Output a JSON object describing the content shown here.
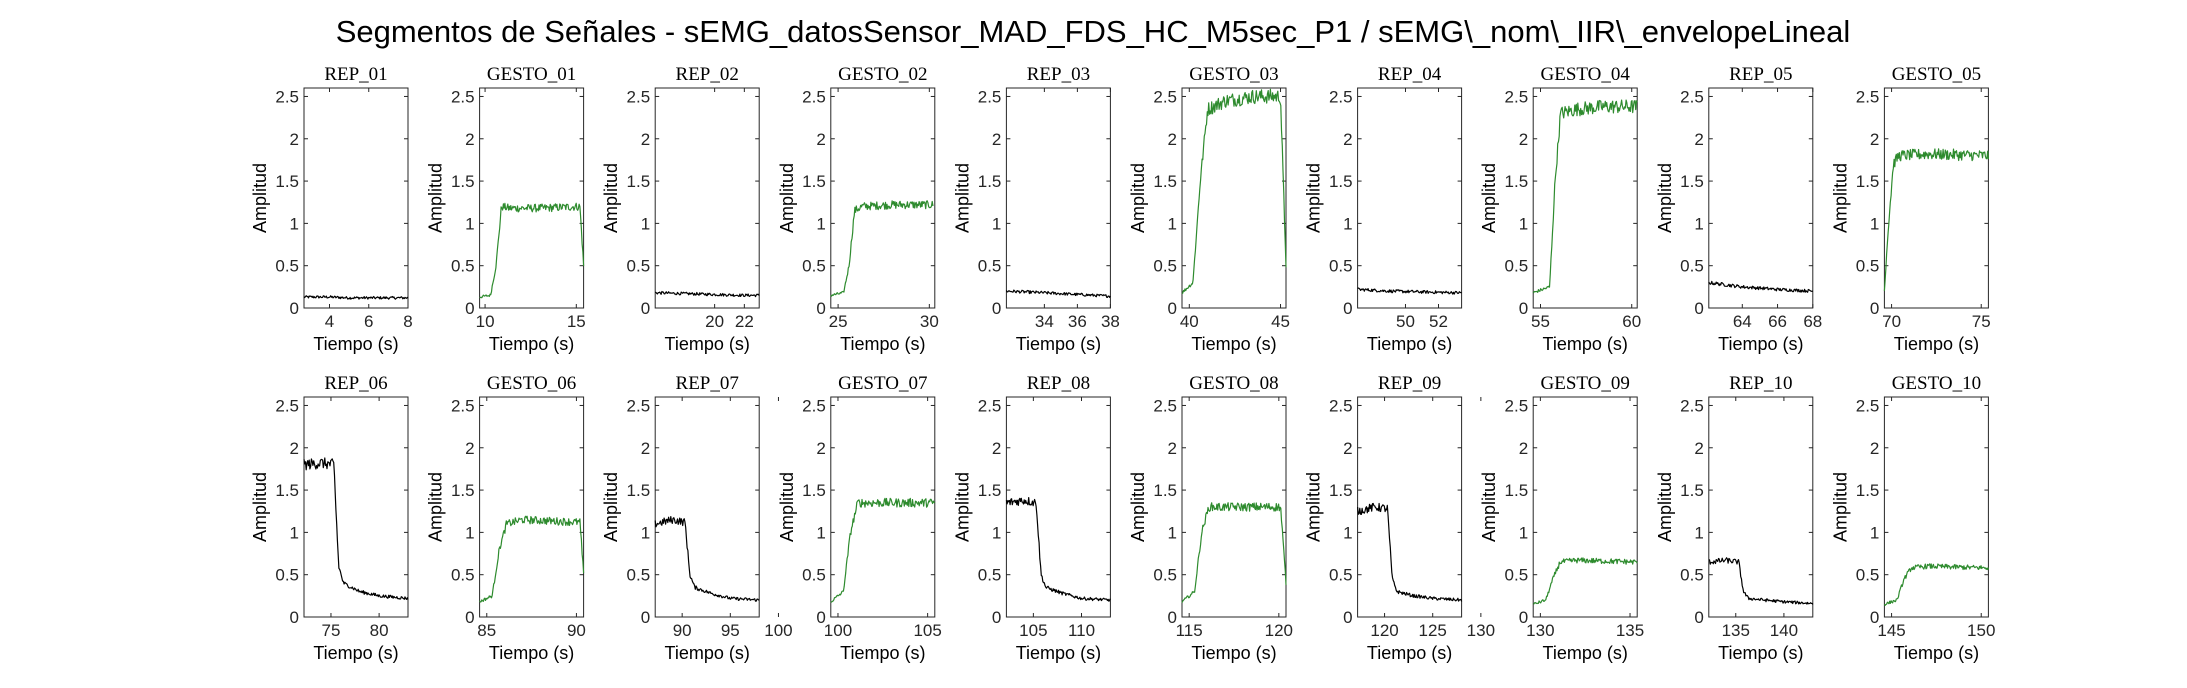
{
  "figure": {
    "suptitle": "Segmentos de Señales - sEMG_datosSensor_MAD_FDS_HC_M5sec_P1 / sEMG\\_nom\\_IIR\\_envelopeLineal"
  },
  "colors": {
    "rep": "#000000",
    "gesture": "#2e8b2e",
    "axis": "#262626"
  },
  "chart_data": [
    {
      "type": "line",
      "title": "REP_01",
      "xlabel": "Tiempo (s)",
      "ylabel": "Amplitud",
      "xlim": [
        2.7,
        8
      ],
      "ylim": [
        0,
        2.6
      ],
      "xticks": [
        4,
        6,
        8
      ],
      "yticks": [
        0,
        0.5,
        1,
        1.5,
        2,
        2.5
      ],
      "color": "#000000",
      "x": [
        2.7,
        4,
        5,
        6,
        7,
        8
      ],
      "y": [
        0.13,
        0.13,
        0.12,
        0.12,
        0.12,
        0.12
      ]
    },
    {
      "type": "line",
      "title": "GESTO_01",
      "xlabel": "Tiempo (s)",
      "ylabel": "Amplitud",
      "xlim": [
        9.7,
        15.4
      ],
      "ylim": [
        0,
        2.6
      ],
      "xticks": [
        10,
        15
      ],
      "yticks": [
        0,
        0.5,
        1,
        1.5,
        2,
        2.5
      ],
      "color": "#2e8b2e",
      "x": [
        9.7,
        10.3,
        10.6,
        10.9,
        11.3,
        13,
        15.2,
        15.4
      ],
      "y": [
        0.13,
        0.15,
        0.5,
        1.2,
        1.18,
        1.18,
        1.2,
        0.5
      ]
    },
    {
      "type": "line",
      "title": "REP_02",
      "xlabel": "Tiempo (s)",
      "ylabel": "Amplitud",
      "xlim": [
        16,
        23
      ],
      "ylim": [
        0,
        2.6
      ],
      "xticks": [
        20,
        22
      ],
      "yticks": [
        0,
        0.5,
        1,
        1.5,
        2,
        2.5
      ],
      "color": "#000000",
      "x": [
        16,
        18,
        20,
        22,
        23
      ],
      "y": [
        0.18,
        0.17,
        0.16,
        0.15,
        0.15
      ]
    },
    {
      "type": "line",
      "title": "GESTO_02",
      "xlabel": "Tiempo (s)",
      "ylabel": "Amplitud",
      "xlim": [
        24.6,
        30.3
      ],
      "ylim": [
        0,
        2.6
      ],
      "xticks": [
        25,
        30
      ],
      "yticks": [
        0,
        0.5,
        1,
        1.5,
        2,
        2.5
      ],
      "color": "#2e8b2e",
      "x": [
        24.6,
        25.3,
        25.6,
        25.9,
        26.3,
        28,
        30.2
      ],
      "y": [
        0.15,
        0.18,
        0.5,
        1.15,
        1.2,
        1.22,
        1.22
      ]
    },
    {
      "type": "line",
      "title": "REP_03",
      "xlabel": "Tiempo (s)",
      "ylabel": "Amplitud",
      "xlim": [
        31.7,
        38
      ],
      "ylim": [
        0,
        2.6
      ],
      "xticks": [
        34,
        36,
        38
      ],
      "yticks": [
        0,
        0.5,
        1,
        1.5,
        2,
        2.5
      ],
      "color": "#000000",
      "x": [
        31.7,
        34,
        36,
        38
      ],
      "y": [
        0.2,
        0.18,
        0.16,
        0.14
      ]
    },
    {
      "type": "line",
      "title": "GESTO_03",
      "xlabel": "Tiempo (s)",
      "ylabel": "Amplitud",
      "xlim": [
        39.6,
        45.3
      ],
      "ylim": [
        0,
        2.6
      ],
      "xticks": [
        40,
        45
      ],
      "yticks": [
        0,
        0.5,
        1,
        1.5,
        2,
        2.5
      ],
      "color": "#2e8b2e",
      "x": [
        39.6,
        40.2,
        40.6,
        41,
        42,
        43.5,
        45,
        45.3
      ],
      "y": [
        0.18,
        0.3,
        1.5,
        2.35,
        2.45,
        2.5,
        2.5,
        0.5
      ]
    },
    {
      "type": "line",
      "title": "REP_04",
      "xlabel": "Tiempo (s)",
      "ylabel": "Amplitud",
      "xlim": [
        47.1,
        53.4
      ],
      "ylim": [
        0,
        2.6
      ],
      "xticks": [
        50,
        52
      ],
      "yticks": [
        0,
        0.5,
        1,
        1.5,
        2,
        2.5
      ],
      "color": "#000000",
      "x": [
        47.1,
        49,
        51,
        53.4
      ],
      "y": [
        0.22,
        0.2,
        0.19,
        0.18
      ]
    },
    {
      "type": "line",
      "title": "GESTO_04",
      "xlabel": "Tiempo (s)",
      "ylabel": "Amplitud",
      "xlim": [
        54.6,
        60.3
      ],
      "ylim": [
        0,
        2.6
      ],
      "xticks": [
        55,
        60
      ],
      "yticks": [
        0,
        0.5,
        1,
        1.5,
        2,
        2.5
      ],
      "color": "#2e8b2e",
      "x": [
        54.6,
        55.5,
        55.8,
        56.1,
        57,
        58.5,
        60.3
      ],
      "y": [
        0.18,
        0.25,
        1.5,
        2.3,
        2.35,
        2.38,
        2.38
      ]
    },
    {
      "type": "line",
      "title": "REP_05",
      "xlabel": "Tiempo (s)",
      "ylabel": "Amplitud",
      "xlim": [
        62.1,
        68
      ],
      "ylim": [
        0,
        2.6
      ],
      "xticks": [
        64,
        66,
        68
      ],
      "yticks": [
        0,
        0.5,
        1,
        1.5,
        2,
        2.5
      ],
      "color": "#000000",
      "x": [
        62.1,
        64,
        66,
        68
      ],
      "y": [
        0.3,
        0.25,
        0.22,
        0.2
      ]
    },
    {
      "type": "line",
      "title": "GESTO_05",
      "xlabel": "Tiempo (s)",
      "ylabel": "Amplitud",
      "xlim": [
        69.6,
        75.4
      ],
      "ylim": [
        0,
        2.6
      ],
      "xticks": [
        70,
        75
      ],
      "yticks": [
        0,
        0.5,
        1,
        1.5,
        2,
        2.5
      ],
      "color": "#2e8b2e",
      "x": [
        69.6,
        69.8,
        70.1,
        70.4,
        72,
        75.4
      ],
      "y": [
        0.2,
        0.9,
        1.7,
        1.8,
        1.82,
        1.8
      ]
    },
    {
      "type": "line",
      "title": "REP_06",
      "xlabel": "Tiempo (s)",
      "ylabel": "Amplitud",
      "xlim": [
        72.2,
        83
      ],
      "ylim": [
        0,
        2.6
      ],
      "xticks": [
        75,
        80
      ],
      "yticks": [
        0,
        0.5,
        1,
        1.5,
        2,
        2.5
      ],
      "color": "#000000",
      "x": [
        72.2,
        74,
        75.3,
        75.8,
        76.3,
        78,
        80,
        83
      ],
      "y": [
        1.8,
        1.82,
        1.8,
        0.6,
        0.4,
        0.3,
        0.25,
        0.22
      ]
    },
    {
      "type": "line",
      "title": "GESTO_06",
      "xlabel": "Tiempo (s)",
      "ylabel": "Amplitud",
      "xlim": [
        84.6,
        90.4
      ],
      "ylim": [
        0,
        2.6
      ],
      "xticks": [
        85,
        90
      ],
      "yticks": [
        0,
        0.5,
        1,
        1.5,
        2,
        2.5
      ],
      "color": "#2e8b2e",
      "x": [
        84.6,
        85.3,
        85.7,
        86.1,
        87,
        90.2,
        90.4
      ],
      "y": [
        0.18,
        0.25,
        0.8,
        1.1,
        1.15,
        1.12,
        0.5
      ]
    },
    {
      "type": "line",
      "title": "REP_07",
      "xlabel": "Tiempo (s)",
      "ylabel": "Amplitud",
      "xlim": [
        87.2,
        98
      ],
      "ylim": [
        0,
        2.6
      ],
      "xticks": [
        90,
        95,
        100
      ],
      "yticks": [
        0,
        0.5,
        1,
        1.5,
        2,
        2.5
      ],
      "color": "#000000",
      "x": [
        87.2,
        89,
        90.3,
        90.8,
        91.3,
        93,
        95,
        98
      ],
      "y": [
        1.1,
        1.15,
        1.12,
        0.5,
        0.35,
        0.28,
        0.22,
        0.2
      ]
    },
    {
      "type": "line",
      "title": "GESTO_07",
      "xlabel": "Tiempo (s)",
      "ylabel": "Amplitud",
      "xlim": [
        99.6,
        105.4
      ],
      "ylim": [
        0,
        2.6
      ],
      "xticks": [
        100,
        105
      ],
      "yticks": [
        0,
        0.5,
        1,
        1.5,
        2,
        2.5
      ],
      "color": "#2e8b2e",
      "x": [
        99.6,
        100.3,
        100.7,
        101.1,
        102,
        105.4
      ],
      "y": [
        0.18,
        0.3,
        1.0,
        1.35,
        1.35,
        1.35
      ]
    },
    {
      "type": "line",
      "title": "REP_08",
      "xlabel": "Tiempo (s)",
      "ylabel": "Amplitud",
      "xlim": [
        102.2,
        113
      ],
      "ylim": [
        0,
        2.6
      ],
      "xticks": [
        105,
        110
      ],
      "yticks": [
        0,
        0.5,
        1,
        1.5,
        2,
        2.5
      ],
      "color": "#000000",
      "x": [
        102.2,
        104,
        105.3,
        105.8,
        106.3,
        108,
        110,
        113
      ],
      "y": [
        1.35,
        1.38,
        1.35,
        0.5,
        0.35,
        0.28,
        0.22,
        0.2
      ]
    },
    {
      "type": "line",
      "title": "GESTO_08",
      "xlabel": "Tiempo (s)",
      "ylabel": "Amplitud",
      "xlim": [
        114.6,
        120.4
      ],
      "ylim": [
        0,
        2.6
      ],
      "xticks": [
        115,
        120
      ],
      "yticks": [
        0,
        0.5,
        1,
        1.5,
        2,
        2.5
      ],
      "color": "#2e8b2e",
      "x": [
        114.6,
        115.3,
        115.7,
        116.1,
        117,
        120.1,
        120.4
      ],
      "y": [
        0.18,
        0.3,
        1.0,
        1.3,
        1.3,
        1.3,
        0.4
      ]
    },
    {
      "type": "line",
      "title": "REP_09",
      "xlabel": "Tiempo (s)",
      "ylabel": "Amplitud",
      "xlim": [
        117.2,
        128
      ],
      "ylim": [
        0,
        2.6
      ],
      "xticks": [
        120,
        125,
        130
      ],
      "yticks": [
        0,
        0.5,
        1,
        1.5,
        2,
        2.5
      ],
      "color": "#000000",
      "x": [
        117.2,
        119,
        120.3,
        120.8,
        121.3,
        123,
        125,
        128
      ],
      "y": [
        1.25,
        1.3,
        1.28,
        0.45,
        0.3,
        0.25,
        0.22,
        0.2
      ]
    },
    {
      "type": "line",
      "title": "GESTO_09",
      "xlabel": "Tiempo (s)",
      "ylabel": "Amplitud",
      "xlim": [
        129.6,
        135.4
      ],
      "ylim": [
        0,
        2.6
      ],
      "xticks": [
        130,
        135
      ],
      "yticks": [
        0,
        0.5,
        1,
        1.5,
        2,
        2.5
      ],
      "color": "#2e8b2e",
      "x": [
        129.6,
        130.3,
        130.7,
        131.1,
        132,
        135.4
      ],
      "y": [
        0.15,
        0.2,
        0.45,
        0.65,
        0.67,
        0.65
      ]
    },
    {
      "type": "line",
      "title": "REP_10",
      "xlabel": "Tiempo (s)",
      "ylabel": "Amplitud",
      "xlim": [
        132.2,
        143
      ],
      "ylim": [
        0,
        2.6
      ],
      "xticks": [
        135,
        140
      ],
      "yticks": [
        0,
        0.5,
        1,
        1.5,
        2,
        2.5
      ],
      "color": "#000000",
      "x": [
        132.2,
        134,
        135.3,
        135.8,
        136.3,
        138,
        140,
        143
      ],
      "y": [
        0.65,
        0.67,
        0.65,
        0.3,
        0.22,
        0.2,
        0.18,
        0.16
      ]
    },
    {
      "type": "line",
      "title": "GESTO_10",
      "xlabel": "Tiempo (s)",
      "ylabel": "Amplitud",
      "xlim": [
        144.6,
        150.4
      ],
      "ylim": [
        0,
        2.6
      ],
      "xticks": [
        145,
        150
      ],
      "yticks": [
        0,
        0.5,
        1,
        1.5,
        2,
        2.5
      ],
      "color": "#2e8b2e",
      "x": [
        144.6,
        145.3,
        145.7,
        146.1,
        147,
        150.4
      ],
      "y": [
        0.15,
        0.2,
        0.45,
        0.58,
        0.6,
        0.58
      ]
    }
  ]
}
